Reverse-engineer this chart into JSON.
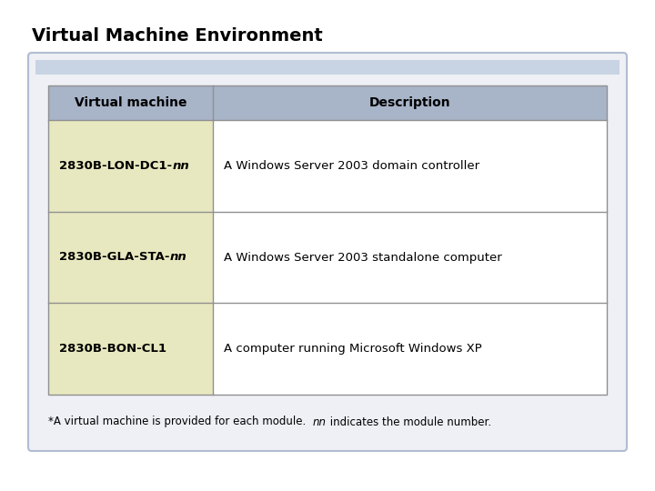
{
  "title": "Virtual Machine Environment",
  "title_fontsize": 14,
  "title_fontweight": "bold",
  "bg_color": "#ffffff",
  "outer_box_edge": "#b0bcd0",
  "outer_box_fill": "#eef0f5",
  "header_bg": "#a8b4c8",
  "header_text_color": "#000000",
  "col1_header": "Virtual machine",
  "col2_header": "Description",
  "col1_bg": "#e8e8c0",
  "col2_bg": "#ffffff",
  "grid_color": "#909090",
  "rows": [
    {
      "vm_bold": "2830B-LON-DC1-",
      "vm_italic": "nn",
      "desc": "A Windows Server 2003 domain controller"
    },
    {
      "vm_bold": "2830B-GLA-STA-",
      "vm_italic": "nn",
      "desc": "A Windows Server 2003 standalone computer"
    },
    {
      "vm_bold": "2830B-BON-CL1",
      "vm_italic": "",
      "desc": "A computer running Microsoft Windows XP"
    }
  ],
  "footnote_part1": "*A virtual machine is provided for each module.  ",
  "footnote_italic": "nn",
  "footnote_part2": " indicates the module number.",
  "footnote_fontsize": 8.5,
  "cell_fontsize": 9.5,
  "header_fontsize": 10
}
